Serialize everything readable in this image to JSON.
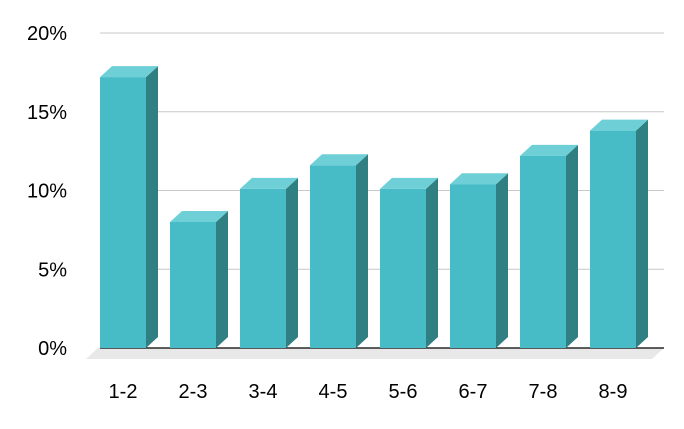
{
  "chart_data": {
    "type": "bar",
    "title": "",
    "xlabel": "",
    "ylabel": "",
    "categories": [
      "1-2",
      "2-3",
      "3-4",
      "4-5",
      "5-6",
      "6-7",
      "7-8",
      "8-9"
    ],
    "values": [
      17.2,
      8.0,
      10.1,
      11.6,
      10.1,
      10.4,
      12.2,
      13.8
    ],
    "ylim": [
      0,
      20
    ],
    "yticks": [
      "0%",
      "5%",
      "10%",
      "15%",
      "20%"
    ],
    "grid": true,
    "legend": "none",
    "style": "3d",
    "colors": {
      "bar_front": "#47BCC6",
      "bar_side": "#2F7F83",
      "bar_top": "#6ECFD7",
      "floor": "#E8E8E8",
      "grid": "#C8C8C8",
      "axis_line": "#000000",
      "text": "#000000"
    }
  }
}
